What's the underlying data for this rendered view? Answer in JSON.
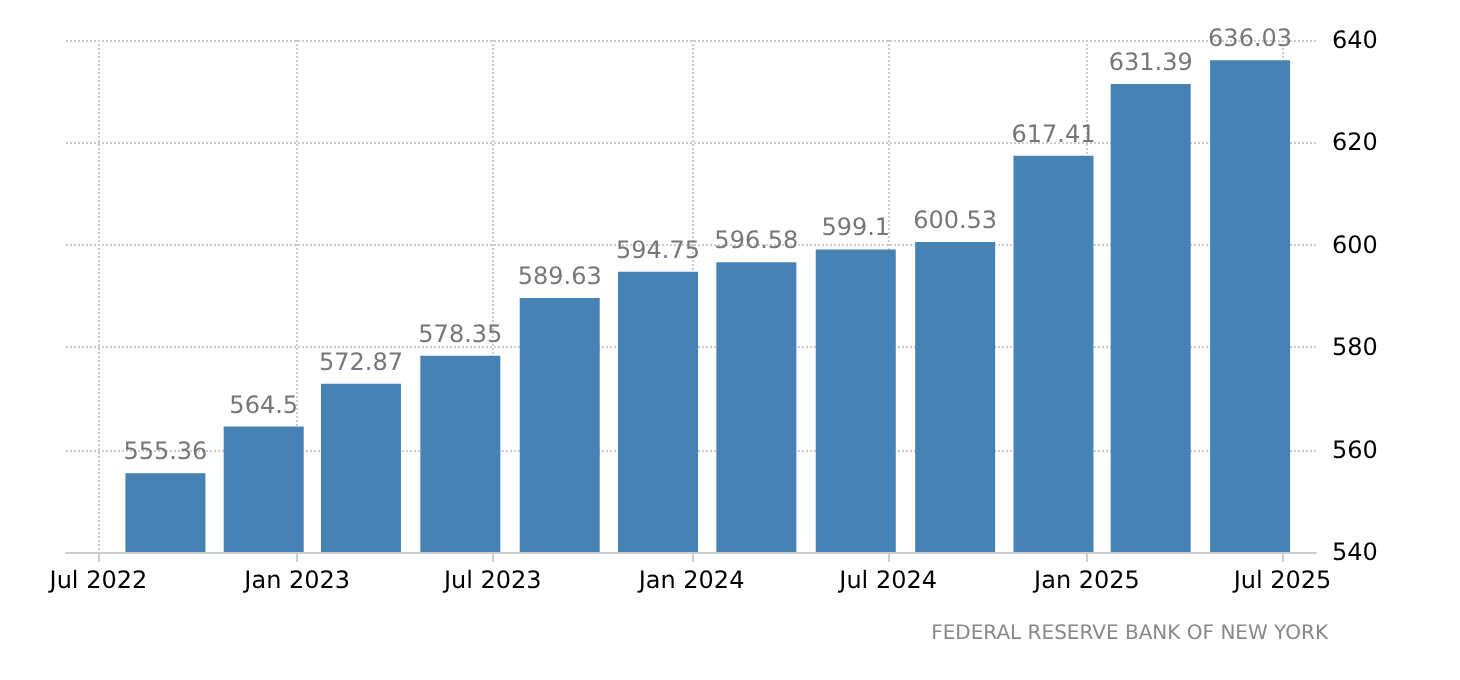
{
  "chart_data": {
    "type": "bar",
    "x": [
      "2022-09",
      "2022-12",
      "2023-03",
      "2023-06",
      "2023-09",
      "2023-12",
      "2024-03",
      "2024-06",
      "2024-09",
      "2024-12",
      "2025-03",
      "2025-06"
    ],
    "values": [
      555.36,
      564.5,
      572.87,
      578.35,
      589.63,
      594.75,
      596.58,
      599.1,
      600.53,
      617.41,
      631.39,
      636.03
    ],
    "color": "#4682b4",
    "data_labels": true,
    "xlim": [
      "2022-06",
      "2025-08"
    ],
    "xticks": [
      {
        "value": "2022-07",
        "label": "Jul 2022"
      },
      {
        "value": "2023-01",
        "label": "Jan 2023"
      },
      {
        "value": "2023-07",
        "label": "Jul 2023"
      },
      {
        "value": "2024-01",
        "label": "Jan 2024"
      },
      {
        "value": "2024-07",
        "label": "Jul 2024"
      },
      {
        "value": "2025-01",
        "label": "Jan 2025"
      },
      {
        "value": "2025-07",
        "label": "Jul 2025"
      }
    ],
    "ylim": [
      540,
      640
    ],
    "yticks": [
      540,
      560,
      580,
      600,
      620,
      640
    ],
    "grid": true,
    "annotations": [
      "FEDERAL RESERVE BANK OF NEW YORK"
    ]
  }
}
